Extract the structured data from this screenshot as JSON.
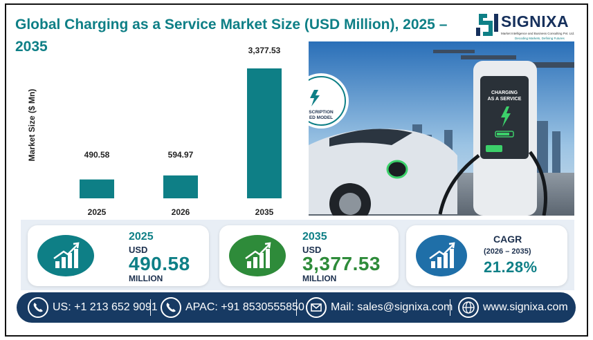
{
  "title": "Global Charging as a Service Market Size (USD Million), 2025 – 2035",
  "logo": {
    "name": "SIGNIXA",
    "subtitle": "Market Intelligence and Business Consulting Pvt. Ltd.",
    "tagline": "Decoding Markets, Defining Futures"
  },
  "chart_data": {
    "type": "bar",
    "title": "Global Charging as a Service Market Size (USD Million), 2025 – 2035",
    "ylabel": "Market Size ($ Mn)",
    "xlabel": "",
    "categories": [
      "2025",
      "2026",
      "2035"
    ],
    "values": [
      490.58,
      594.97,
      3377.53
    ],
    "value_labels": [
      "490.58",
      "594.97",
      "3,377.53"
    ],
    "ylim": [
      0,
      3377.53
    ],
    "grid": false,
    "bar_color": "#0e7f86"
  },
  "photo": {
    "station_label": "CHARGING AS A SERVICE",
    "badge_text": "SCRIPTION\nED MODEL"
  },
  "cards": [
    {
      "year": "2025",
      "unit": "USD",
      "value": "490.58",
      "multiplier": "MILLION",
      "color": "#0e7f86"
    },
    {
      "year": "2035",
      "unit": "USD",
      "value": "3,377.53",
      "multiplier": "MILLION",
      "color": "#2e8b3a"
    },
    {
      "label": "CAGR",
      "period": "(2026 – 2035)",
      "value": "21.28%",
      "color": "#1f6fa8"
    }
  ],
  "footer": {
    "us": "US: +1 213 652 9091",
    "apac": "APAC: +91 8530555850",
    "mail": "Mail: sales@signixa.com",
    "web": "www.signixa.com"
  },
  "icons": {
    "phone": "phone-icon",
    "mail": "mail-icon",
    "globe": "globe-icon",
    "growth": "growth-chart-icon"
  },
  "colors": {
    "accent": "#0e7f86",
    "navy": "#173a63",
    "green": "#2e8b3a",
    "blue": "#1f6fa8"
  }
}
